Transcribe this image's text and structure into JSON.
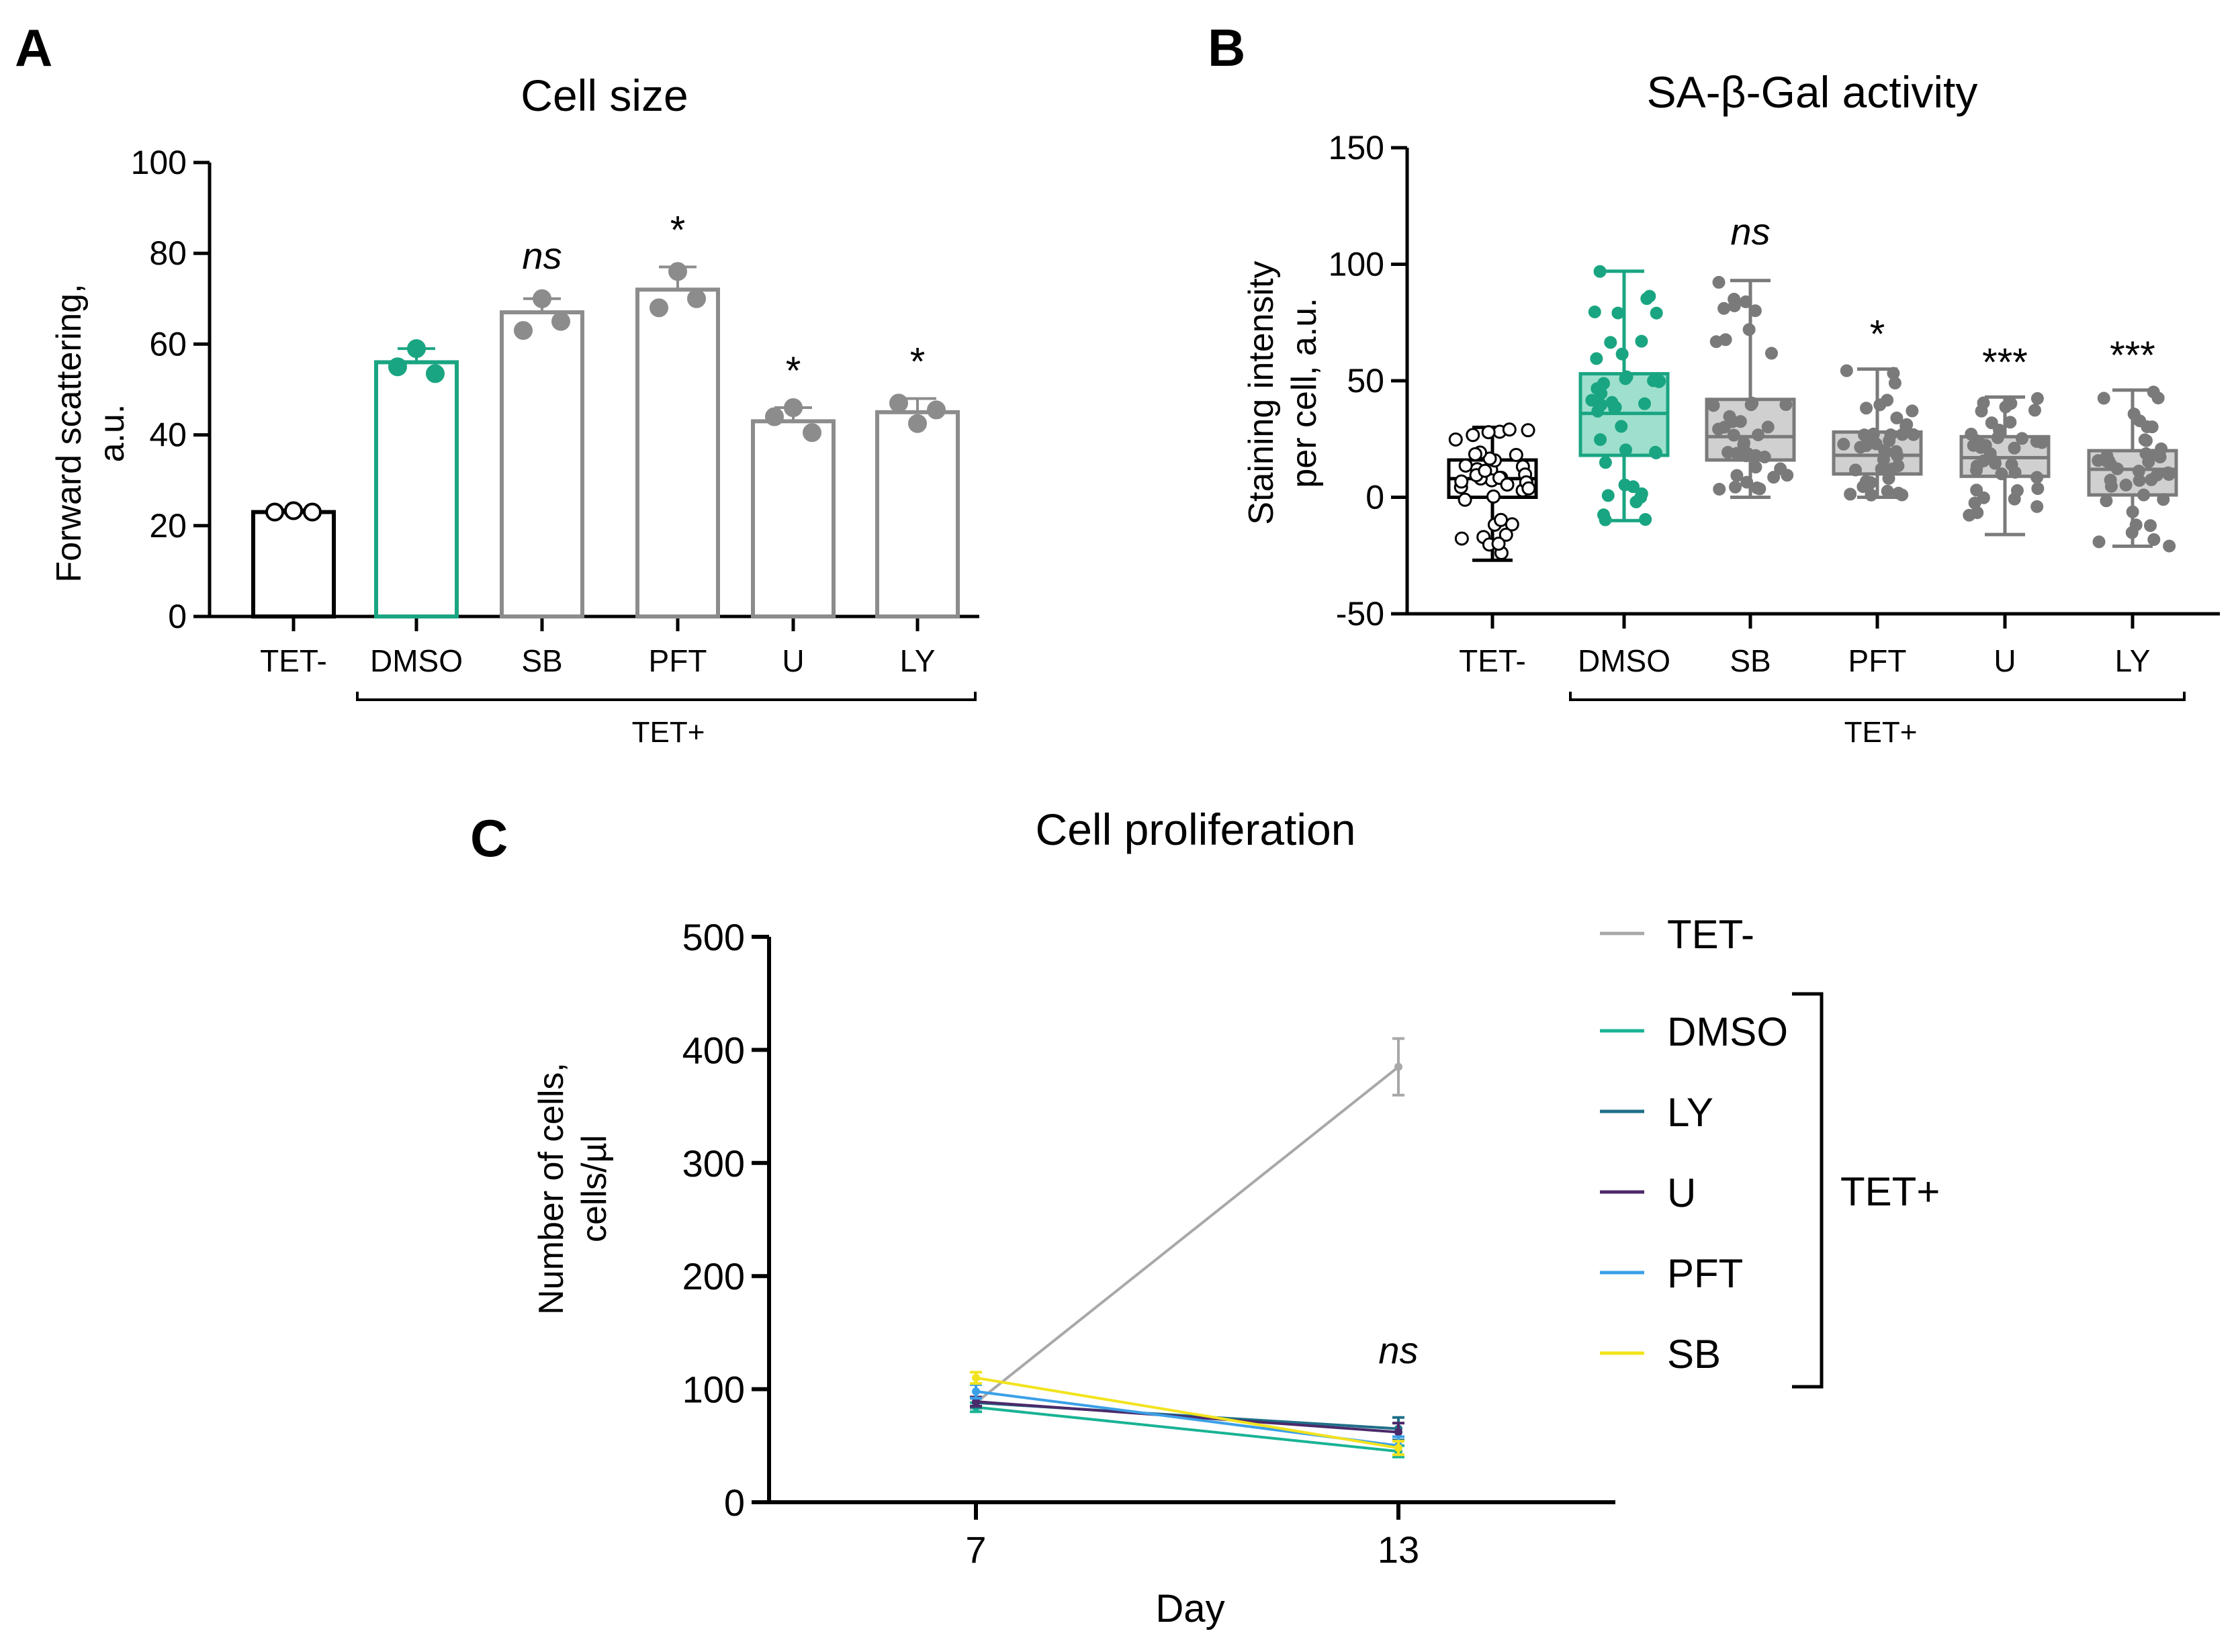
{
  "chart_data": [
    {
      "panel": "A",
      "type": "bar",
      "title": "Cell size",
      "ylabel_lines": [
        "Forward scattering,",
        "a.u."
      ],
      "ylim": [
        0,
        100
      ],
      "yticks": [
        0,
        20,
        40,
        60,
        80,
        100
      ],
      "categories": [
        "TET-",
        "DMSO",
        "SB",
        "PFT",
        "U",
        "LY"
      ],
      "values": [
        23,
        56,
        67,
        72,
        43,
        45
      ],
      "errors": [
        0.5,
        3,
        3,
        5,
        3,
        3
      ],
      "points": [
        [
          23,
          23.3,
          23
        ],
        [
          55,
          59,
          53.5
        ],
        [
          63,
          70,
          65
        ],
        [
          68,
          76,
          70
        ],
        [
          44,
          46,
          40.5
        ],
        [
          47,
          42.5,
          45.5
        ]
      ],
      "colors": [
        "#000000",
        "#1aa582",
        "#8c8c8c",
        "#8c8c8c",
        "#8c8c8c",
        "#8c8c8c"
      ],
      "significance": [
        "",
        "",
        "ns",
        "*",
        "*",
        "*"
      ],
      "group_label": "TET+"
    },
    {
      "panel": "B",
      "type": "box",
      "title": "SA-β-Gal activity",
      "ylabel_lines": [
        "Staining intensity",
        "per cell, a.u."
      ],
      "ylim": [
        -50,
        150
      ],
      "yticks": [
        -50,
        0,
        50,
        100,
        150
      ],
      "categories": [
        "TET-",
        "DMSO",
        "SB",
        "PFT",
        "U",
        "LY"
      ],
      "boxes": [
        {
          "min": -27,
          "q1": 0,
          "median": 8,
          "q3": 16,
          "max": 30
        },
        {
          "min": -10,
          "q1": 18,
          "median": 36,
          "q3": 53,
          "max": 97
        },
        {
          "min": 0,
          "q1": 16,
          "median": 26,
          "q3": 42,
          "max": 93
        },
        {
          "min": 0,
          "q1": 10,
          "median": 18,
          "q3": 28,
          "max": 55
        },
        {
          "min": -16,
          "q1": 9,
          "median": 17,
          "q3": 26,
          "max": 43
        },
        {
          "min": -21,
          "q1": 1,
          "median": 12,
          "q3": 20,
          "max": 46
        }
      ],
      "colors": [
        "#000000",
        "#1aa582",
        "#7a7a7a",
        "#7a7a7a",
        "#7a7a7a",
        "#7a7a7a"
      ],
      "significance": [
        "",
        "",
        "ns",
        "*",
        "***",
        "***"
      ],
      "group_label": "TET+"
    },
    {
      "panel": "C",
      "type": "line",
      "title": "Cell proliferation",
      "xlabel": "Day",
      "ylabel_lines": [
        "Number of cells,",
        "cells/µl"
      ],
      "x": [
        7,
        13
      ],
      "xticks": [
        "7",
        "13"
      ],
      "ylim": [
        0,
        500
      ],
      "yticks": [
        0,
        100,
        200,
        300,
        400,
        500
      ],
      "series": [
        {
          "name": "TET-",
          "color": "#a8a8a8",
          "values": [
            88,
            385
          ],
          "errors": [
            5,
            25
          ]
        },
        {
          "name": "DMSO",
          "color": "#19b394",
          "values": [
            84,
            45
          ],
          "errors": [
            4,
            5
          ]
        },
        {
          "name": "LY",
          "color": "#1f6f88",
          "values": [
            88,
            65
          ],
          "errors": [
            4,
            10
          ]
        },
        {
          "name": "U",
          "color": "#4b2a6a",
          "values": [
            89,
            62
          ],
          "errors": [
            4,
            8
          ]
        },
        {
          "name": "PFT",
          "color": "#3aa0e8",
          "values": [
            98,
            50
          ],
          "errors": [
            6,
            8
          ]
        },
        {
          "name": "SB",
          "color": "#f2e31e",
          "values": [
            110,
            48
          ],
          "errors": [
            5,
            6
          ]
        }
      ],
      "annotation": "ns",
      "group_label": "TET+"
    }
  ]
}
